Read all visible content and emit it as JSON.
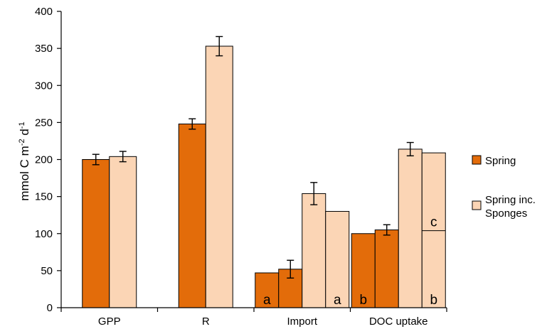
{
  "chart_data": {
    "type": "bar",
    "ylabel": "mmol C m-2 d-1",
    "ylabel_parts": {
      "base": "mmol C m",
      "exp1": "-2",
      "mid": " d",
      "exp2": "-1"
    },
    "ylim": [
      0,
      400
    ],
    "yticks": [
      "0",
      "50",
      "100",
      "150",
      "200",
      "250",
      "300",
      "350",
      "400"
    ],
    "categories": [
      "GPP",
      "R",
      "Import",
      "DOC uptake"
    ],
    "legend": {
      "position": "right",
      "entries": [
        {
          "label_lines": [
            "Spring"
          ],
          "color": "#e36c0a"
        },
        {
          "label_lines": [
            "Spring inc.",
            "Sponges"
          ],
          "color": "#fbd5b5"
        }
      ]
    },
    "colors": {
      "spring": "#e36c0a",
      "spring_sponges": "#fbd5b5"
    },
    "bars": [
      {
        "category": "GPP",
        "series": "Spring",
        "value": 200,
        "error": 7
      },
      {
        "category": "GPP",
        "series": "Spring inc. Sponges",
        "value": 204,
        "error": 7
      },
      {
        "category": "R",
        "series": "Spring",
        "value": 248,
        "error": 7
      },
      {
        "category": "R",
        "series": "Spring inc. Sponges",
        "value": 353,
        "error": 13
      },
      {
        "category": "Import",
        "series": "Spring",
        "value": 47,
        "label": "a"
      },
      {
        "category": "Import",
        "series": "Spring",
        "value": 52,
        "error": 12
      },
      {
        "category": "Import",
        "series": "Spring inc. Sponges",
        "value": 154,
        "error": 15
      },
      {
        "category": "Import",
        "series": "Spring inc. Sponges",
        "value": 130,
        "label": "a"
      },
      {
        "category": "DOC uptake",
        "series": "Spring",
        "value": 100,
        "label": "b"
      },
      {
        "category": "DOC uptake",
        "series": "Spring",
        "value": 105,
        "error": 7
      },
      {
        "category": "DOC uptake",
        "series": "Spring inc. Sponges",
        "value": 214,
        "error": 9
      },
      {
        "category": "DOC uptake",
        "series": "Spring inc. Sponges",
        "value": 209,
        "stack_split": 104,
        "label": "b",
        "upper_label": "c"
      }
    ]
  }
}
